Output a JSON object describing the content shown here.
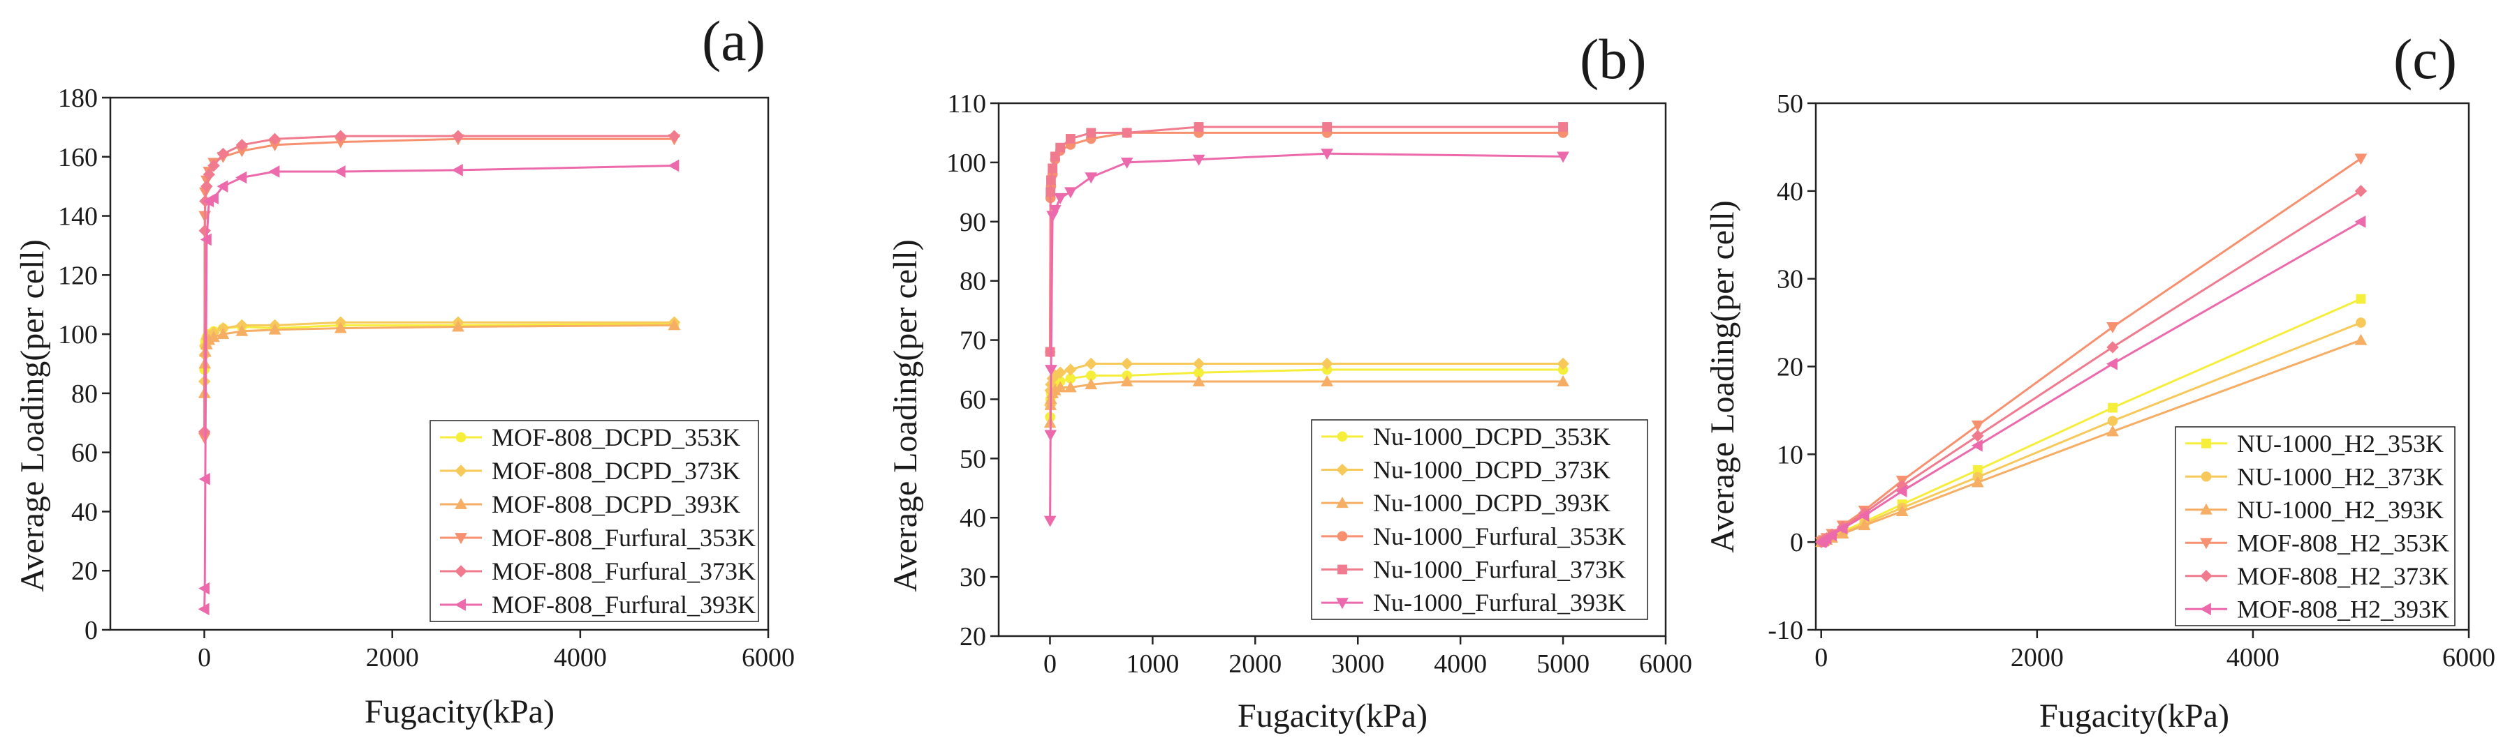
{
  "figure": {
    "panel_labels": [
      "(a)",
      "(b)",
      "(c)"
    ]
  },
  "chart_data": [
    {
      "type": "line",
      "panel": "(a)",
      "xlabel": "Fugacity(kPa)",
      "ylabel": "Average Loading(per cell)",
      "xlim": [
        -1000,
        6000
      ],
      "ylim": [
        0,
        180
      ],
      "xticks": [
        0,
        2000,
        4000,
        6000
      ],
      "yticks": [
        0,
        20,
        40,
        60,
        80,
        100,
        120,
        140,
        160,
        180
      ],
      "legend_position": "bottom-right",
      "series": [
        {
          "name": "MOF-808_DCPD_353K",
          "color": "#f5ee3b",
          "marker": "circle",
          "x": [
            1,
            5,
            10,
            25,
            50,
            100,
            200,
            400,
            750,
            1450,
            2700,
            5000
          ],
          "y": [
            88,
            96,
            97.5,
            99,
            100,
            101,
            102,
            102.5,
            102,
            103,
            103,
            103.5
          ]
        },
        {
          "name": "MOF-808_DCPD_373K",
          "color": "#f7c95a",
          "marker": "diamond",
          "x": [
            1,
            5,
            10,
            25,
            50,
            100,
            200,
            400,
            750,
            1450,
            2700,
            5000
          ],
          "y": [
            84,
            93,
            96,
            98.5,
            99.5,
            100.5,
            102,
            103,
            103,
            104,
            104,
            104
          ]
        },
        {
          "name": "MOF-808_DCPD_393K",
          "color": "#f6ad64",
          "marker": "triangle-up",
          "x": [
            1,
            5,
            10,
            25,
            50,
            100,
            200,
            400,
            750,
            1450,
            2700,
            5000
          ],
          "y": [
            80,
            90,
            94,
            96.5,
            98,
            99,
            100,
            101,
            101.5,
            102,
            102.5,
            103
          ]
        },
        {
          "name": "MOF-808_Furfural_353K",
          "color": "#f6906f",
          "marker": "triangle-down",
          "x": [
            1,
            5,
            10,
            25,
            50,
            100,
            200,
            400,
            750,
            1450,
            2700,
            5000
          ],
          "y": [
            65,
            140,
            148,
            152,
            155,
            158,
            160,
            162,
            164,
            165,
            166,
            166
          ]
        },
        {
          "name": "MOF-808_Furfural_373K",
          "color": "#f07b8e",
          "marker": "diamond",
          "x": [
            1,
            5,
            10,
            25,
            50,
            100,
            200,
            400,
            750,
            1450,
            2700,
            5000
          ],
          "y": [
            67,
            135,
            145,
            150,
            154,
            157,
            161,
            164,
            166,
            167,
            167,
            167
          ]
        },
        {
          "name": "MOF-808_Furfural_393K",
          "color": "#ec6aab",
          "marker": "triangle-left",
          "x": [
            1,
            5,
            10,
            25,
            50,
            100,
            200,
            400,
            750,
            1450,
            2700,
            5000
          ],
          "y": [
            7,
            14,
            51,
            132,
            145,
            146,
            150,
            153,
            155,
            155,
            155.5,
            157
          ]
        }
      ]
    },
    {
      "type": "line",
      "panel": "(b)",
      "xlabel": "Fugacity(kPa)",
      "ylabel": "Average Loading(per cell)",
      "xlim": [
        -500,
        6000
      ],
      "ylim": [
        20,
        110
      ],
      "xticks": [
        0,
        1000,
        2000,
        3000,
        4000,
        5000,
        6000
      ],
      "yticks": [
        20,
        30,
        40,
        50,
        60,
        70,
        80,
        90,
        100,
        110
      ],
      "legend_position": "bottom-right",
      "series": [
        {
          "name": "Nu-1000_DCPD_353K",
          "color": "#f5ee3b",
          "marker": "circle",
          "x": [
            1,
            5,
            10,
            25,
            50,
            100,
            200,
            400,
            750,
            1450,
            2700,
            5000
          ],
          "y": [
            57,
            60,
            61,
            62,
            62.5,
            63,
            63.5,
            64,
            64,
            64.5,
            65,
            65
          ]
        },
        {
          "name": "Nu-1000_DCPD_373K",
          "color": "#f7c95a",
          "marker": "diamond",
          "x": [
            1,
            5,
            10,
            25,
            50,
            100,
            200,
            400,
            750,
            1450,
            2700,
            5000
          ],
          "y": [
            59,
            61.5,
            62.5,
            63.5,
            64,
            64.5,
            65,
            66,
            66,
            66,
            66,
            66
          ]
        },
        {
          "name": "Nu-1000_DCPD_393K",
          "color": "#f6ad64",
          "marker": "triangle-up",
          "x": [
            1,
            5,
            10,
            25,
            50,
            100,
            200,
            400,
            750,
            1450,
            2700,
            5000
          ],
          "y": [
            56,
            59,
            60,
            61,
            61.5,
            62,
            62,
            62.5,
            63,
            63,
            63,
            63
          ]
        },
        {
          "name": "Nu-1000_Furfural_353K",
          "color": "#f6906f",
          "marker": "circle",
          "x": [
            1,
            5,
            10,
            25,
            50,
            100,
            200,
            400,
            750,
            1450,
            2700,
            5000
          ],
          "y": [
            68,
            94,
            96,
            98,
            100.5,
            102,
            103,
            104,
            105,
            105,
            105,
            105
          ]
        },
        {
          "name": "Nu-1000_Furfural_373K",
          "color": "#f07b8e",
          "marker": "square",
          "x": [
            1,
            5,
            10,
            25,
            50,
            100,
            200,
            400,
            750,
            1450,
            2700,
            5000
          ],
          "y": [
            68,
            95,
            97,
            99,
            101,
            102.5,
            104,
            105,
            105,
            106,
            106,
            106
          ]
        },
        {
          "name": "Nu-1000_Furfural_393K",
          "color": "#ec6aab",
          "marker": "triangle-down",
          "x": [
            1,
            5,
            10,
            25,
            50,
            100,
            200,
            400,
            750,
            1450,
            2700,
            5000
          ],
          "y": [
            39.5,
            54,
            65,
            91,
            92,
            94,
            95,
            97.5,
            100,
            100.5,
            101.5,
            101
          ]
        }
      ]
    },
    {
      "type": "line",
      "panel": "(c)",
      "xlabel": "Fugacity(kPa)",
      "ylabel": "Average Loading(per cell)",
      "xlim": [
        -50,
        6000
      ],
      "ylim": [
        -10,
        50
      ],
      "xticks": [
        0,
        2000,
        4000,
        6000
      ],
      "yticks": [
        -10,
        0,
        10,
        20,
        30,
        40,
        50
      ],
      "legend_position": "bottom-right",
      "series": [
        {
          "name": "NU-1000_H2_353K",
          "color": "#f5ee3b",
          "marker": "square",
          "x": [
            1,
            10,
            25,
            50,
            100,
            200,
            400,
            750,
            1450,
            2700,
            5000
          ],
          "y": [
            0,
            0.06,
            0.15,
            0.3,
            0.6,
            1.2,
            2.3,
            4.3,
            8.2,
            15.3,
            27.7
          ]
        },
        {
          "name": "NU-1000_H2_373K",
          "color": "#f7c95a",
          "marker": "circle",
          "x": [
            1,
            10,
            25,
            50,
            100,
            200,
            400,
            750,
            1450,
            2700,
            5000
          ],
          "y": [
            0,
            0.05,
            0.13,
            0.27,
            0.53,
            1.05,
            2.1,
            3.9,
            7.4,
            13.8,
            25
          ]
        },
        {
          "name": "NU-1000_H2_393K",
          "color": "#f6ad64",
          "marker": "triangle-up",
          "x": [
            1,
            10,
            25,
            50,
            100,
            200,
            400,
            750,
            1450,
            2700,
            5000
          ],
          "y": [
            0,
            0.05,
            0.12,
            0.24,
            0.48,
            0.95,
            1.9,
            3.5,
            6.8,
            12.6,
            23
          ]
        },
        {
          "name": "MOF-808_H2_353K",
          "color": "#f6906f",
          "marker": "triangle-down",
          "x": [
            1,
            10,
            25,
            50,
            100,
            200,
            400,
            750,
            1450,
            2700,
            5000
          ],
          "y": [
            0,
            0.09,
            0.23,
            0.47,
            0.94,
            1.9,
            3.6,
            7,
            13.3,
            24.5,
            43.7
          ]
        },
        {
          "name": "MOF-808_H2_373K",
          "color": "#f07b8e",
          "marker": "diamond",
          "x": [
            1,
            10,
            25,
            50,
            100,
            200,
            400,
            750,
            1450,
            2700,
            5000
          ],
          "y": [
            0,
            0.08,
            0.21,
            0.43,
            0.86,
            1.7,
            3.3,
            6.4,
            12.1,
            22.2,
            40
          ]
        },
        {
          "name": "MOF-808_H2_393K",
          "color": "#ec6aab",
          "marker": "triangle-left",
          "x": [
            1,
            10,
            25,
            50,
            100,
            200,
            400,
            750,
            1450,
            2700,
            5000
          ],
          "y": [
            0,
            0.07,
            0.19,
            0.39,
            0.78,
            1.55,
            3,
            5.8,
            11,
            20.3,
            36.5
          ]
        }
      ]
    }
  ]
}
